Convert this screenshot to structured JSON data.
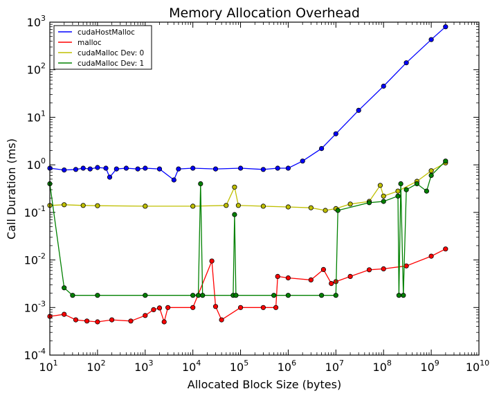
{
  "chart_data": {
    "type": "scatter",
    "title": "Memory Allocation Overhead",
    "xlabel": "Allocated Block Size (bytes)",
    "ylabel": "Call Duration (ms)",
    "xscale": "log",
    "yscale": "log",
    "xlim": [
      10,
      10000000000
    ],
    "ylim": [
      0.0001,
      1000
    ],
    "x_ticks": [
      {
        "value": 10,
        "base": "10",
        "exp": "1"
      },
      {
        "value": 100,
        "base": "10",
        "exp": "2"
      },
      {
        "value": 1000,
        "base": "10",
        "exp": "3"
      },
      {
        "value": 10000,
        "base": "10",
        "exp": "4"
      },
      {
        "value": 100000,
        "base": "10",
        "exp": "5"
      },
      {
        "value": 1000000,
        "base": "10",
        "exp": "6"
      },
      {
        "value": 10000000,
        "base": "10",
        "exp": "7"
      },
      {
        "value": 100000000,
        "base": "10",
        "exp": "8"
      },
      {
        "value": 1000000000,
        "base": "10",
        "exp": "9"
      },
      {
        "value": 10000000000,
        "base": "10",
        "exp": "10"
      }
    ],
    "y_ticks": [
      {
        "value": 0.0001,
        "base": "10",
        "exp": "-4"
      },
      {
        "value": 0.001,
        "base": "10",
        "exp": "-3"
      },
      {
        "value": 0.01,
        "base": "10",
        "exp": "-2"
      },
      {
        "value": 0.1,
        "base": "10",
        "exp": "-1"
      },
      {
        "value": 1,
        "base": "10",
        "exp": "0"
      },
      {
        "value": 10,
        "base": "10",
        "exp": "1"
      },
      {
        "value": 100,
        "base": "10",
        "exp": "2"
      },
      {
        "value": 1000,
        "base": "10",
        "exp": "3"
      }
    ],
    "legend": "top-left",
    "grid": false,
    "series": [
      {
        "name": "cudaHostMalloc",
        "color": "#0000ff",
        "points": [
          [
            10,
            0.85
          ],
          [
            20,
            0.78
          ],
          [
            35,
            0.8
          ],
          [
            50,
            0.85
          ],
          [
            70,
            0.82
          ],
          [
            100,
            0.88
          ],
          [
            150,
            0.85
          ],
          [
            180,
            0.55
          ],
          [
            250,
            0.82
          ],
          [
            400,
            0.85
          ],
          [
            700,
            0.82
          ],
          [
            1000,
            0.85
          ],
          [
            2000,
            0.82
          ],
          [
            4000,
            0.48
          ],
          [
            5000,
            0.82
          ],
          [
            10000,
            0.85
          ],
          [
            30000,
            0.82
          ],
          [
            100000,
            0.85
          ],
          [
            300000,
            0.8
          ],
          [
            600000,
            0.85
          ],
          [
            1000000,
            0.85
          ],
          [
            2000000,
            1.2
          ],
          [
            5000000,
            2.2
          ],
          [
            10000000,
            4.5
          ],
          [
            30000000,
            14
          ],
          [
            100000000,
            45
          ],
          [
            300000000,
            140
          ],
          [
            1000000000,
            430
          ],
          [
            2000000000,
            800
          ]
        ]
      },
      {
        "name": "malloc",
        "color": "#ff0000",
        "points": [
          [
            10,
            0.00065
          ],
          [
            20,
            0.00072
          ],
          [
            35,
            0.00055
          ],
          [
            60,
            0.00052
          ],
          [
            100,
            0.0005
          ],
          [
            200,
            0.00055
          ],
          [
            500,
            0.00052
          ],
          [
            1000,
            0.00068
          ],
          [
            1500,
            0.0009
          ],
          [
            2000,
            0.00098
          ],
          [
            2500,
            0.0005
          ],
          [
            3000,
            0.001
          ],
          [
            10000,
            0.001
          ],
          [
            25000,
            0.0095
          ],
          [
            30000,
            0.00105
          ],
          [
            40000,
            0.00055
          ],
          [
            100000,
            0.001
          ],
          [
            300000,
            0.001
          ],
          [
            550000,
            0.001
          ],
          [
            600000,
            0.0045
          ],
          [
            1000000,
            0.0042
          ],
          [
            3000000,
            0.0038
          ],
          [
            5500000,
            0.0063
          ],
          [
            8000000,
            0.0032
          ],
          [
            10000000,
            0.0035
          ],
          [
            20000000,
            0.0045
          ],
          [
            50000000,
            0.0062
          ],
          [
            100000000,
            0.0065
          ],
          [
            300000000,
            0.0075
          ],
          [
            1000000000,
            0.012
          ],
          [
            2000000000,
            0.017
          ]
        ]
      },
      {
        "name": "cudaMalloc Dev: 0",
        "color": "#bfbf00",
        "points": [
          [
            10,
            0.14
          ],
          [
            20,
            0.145
          ],
          [
            50,
            0.14
          ],
          [
            100,
            0.138
          ],
          [
            1000,
            0.135
          ],
          [
            10000,
            0.135
          ],
          [
            50000,
            0.14
          ],
          [
            75000,
            0.34
          ],
          [
            90000,
            0.14
          ],
          [
            300000,
            0.135
          ],
          [
            1000000,
            0.13
          ],
          [
            3000000,
            0.125
          ],
          [
            6000000,
            0.11
          ],
          [
            10000000,
            0.12
          ],
          [
            20000000,
            0.15
          ],
          [
            50000000,
            0.17
          ],
          [
            85000000,
            0.37
          ],
          [
            100000000,
            0.22
          ],
          [
            200000000,
            0.28
          ],
          [
            500000000,
            0.45
          ],
          [
            1000000000,
            0.75
          ],
          [
            2000000000,
            1.1
          ]
        ]
      },
      {
        "name": "cudaMalloc Dev: 1",
        "color": "#008000",
        "points": [
          [
            10,
            0.4
          ],
          [
            20,
            0.0026
          ],
          [
            30,
            0.0018
          ],
          [
            100,
            0.0018
          ],
          [
            1000,
            0.0018
          ],
          [
            10000,
            0.0018
          ],
          [
            13000,
            0.0018
          ],
          [
            14500,
            0.4
          ],
          [
            16000,
            0.0018
          ],
          [
            70000,
            0.0018
          ],
          [
            75000,
            0.09
          ],
          [
            80000,
            0.0018
          ],
          [
            500000,
            0.0018
          ],
          [
            1000000,
            0.0018
          ],
          [
            5000000,
            0.0018
          ],
          [
            10000000,
            0.0018
          ],
          [
            11000000,
            0.11
          ],
          [
            50000000,
            0.16
          ],
          [
            100000000,
            0.17
          ],
          [
            200000000,
            0.22
          ],
          [
            210000000,
            0.0018
          ],
          [
            230000000,
            0.4
          ],
          [
            260000000,
            0.0018
          ],
          [
            300000000,
            0.3
          ],
          [
            500000000,
            0.4
          ],
          [
            800000000,
            0.28
          ],
          [
            1000000000,
            0.6
          ],
          [
            2000000000,
            1.2
          ]
        ]
      }
    ]
  }
}
